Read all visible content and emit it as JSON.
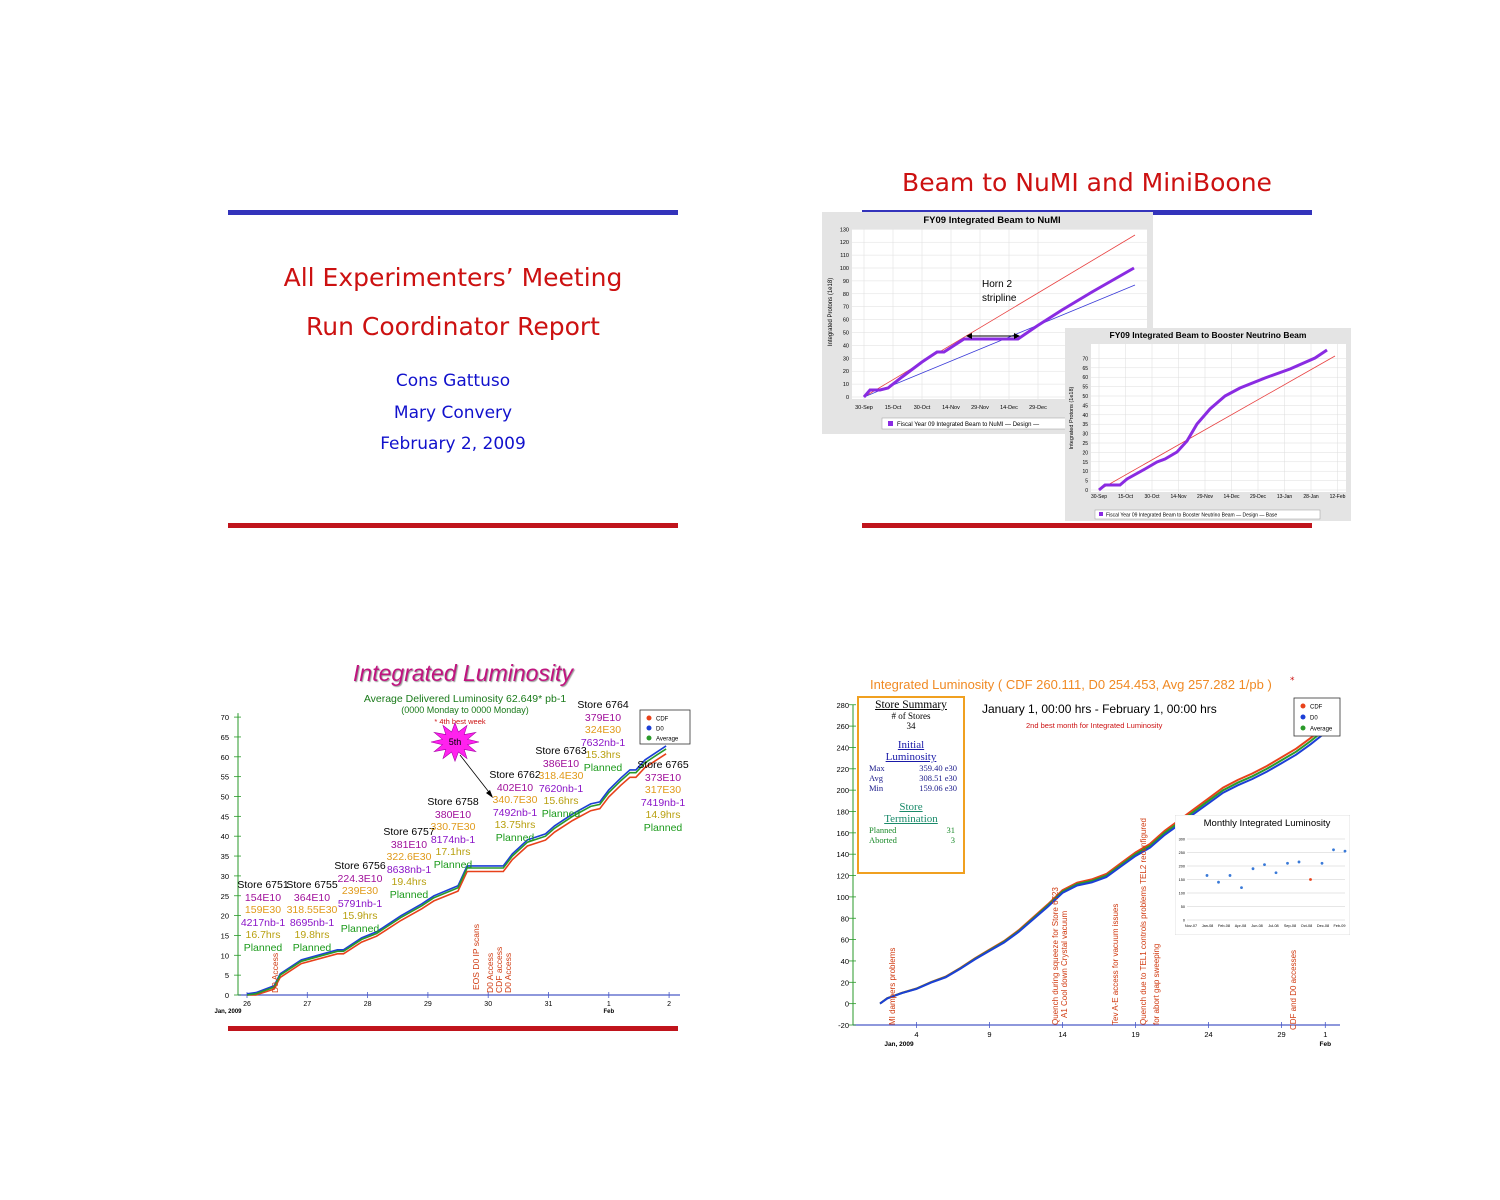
{
  "slide1": {
    "title_line1": "All Experimenters’ Meeting",
    "title_line2": "Run Coordinator Report",
    "author1": "Cons Gattuso",
    "author2": "Mary Convery",
    "date": "February 2, 2009"
  },
  "slide2": {
    "title": "Beam to NuMI and MiniBoone",
    "numi_chart": {
      "title": "FY09 Integrated Beam to NuMI",
      "ylabel": "Integrated Protons (1e18)",
      "annotation_line1": "Horn 2",
      "annotation_line2": "stripline",
      "legend": "Fiscal Year 09 Integrated Beam to NuMI — Design —",
      "yticks": [
        "0",
        "10",
        "20",
        "30",
        "40",
        "50",
        "60",
        "70",
        "80",
        "90",
        "100",
        "110",
        "120",
        "130"
      ],
      "xticks": [
        "30-Sep",
        "15-Oct",
        "30-Oct",
        "14-Nov",
        "29-Nov",
        "14-Dec",
        "29-Dec"
      ]
    },
    "bnb_chart": {
      "title": "FY09 Integrated Beam to Booster Neutrino Beam",
      "ylabel": "Integrated Protons (1e18)",
      "legend": "Fiscal Year 09 Integrated Beam to Booster Neutrino Beam — Design — Base",
      "yticks": [
        "0",
        "5",
        "10",
        "15",
        "20",
        "25",
        "30",
        "35",
        "40",
        "45",
        "50",
        "55",
        "60",
        "65",
        "70"
      ],
      "xticks": [
        "30-Sep",
        "15-Oct",
        "30-Oct",
        "14-Nov",
        "29-Nov",
        "14-Dec",
        "29-Dec",
        "13-Jan",
        "28-Jan",
        "12-Feb"
      ]
    }
  },
  "slide3": {
    "title": "Integrated Luminosity",
    "subtitle_line1": "Average Delivered Luminosity 62.649* pb-1",
    "subtitle_line2": "(0000 Monday to 0000 Monday)",
    "best_week": "* 4th best week",
    "star_label": "5th",
    "legend": [
      "CDF",
      "D0",
      "Average"
    ],
    "yticks": [
      "0",
      "5",
      "10",
      "15",
      "20",
      "25",
      "30",
      "35",
      "40",
      "45",
      "50",
      "55",
      "60",
      "65",
      "70"
    ],
    "xticks": [
      "26",
      "27",
      "28",
      "29",
      "30",
      "31",
      "1",
      "2"
    ],
    "xsub_left": "Jan, 2009",
    "xsub_right": "Feb",
    "stores": [
      {
        "name": "Store 6751",
        "l1": "154E10",
        "l2": "159E30",
        "l3": "4217nb-1",
        "l4": "16.7hrs",
        "l5": "Planned"
      },
      {
        "name": "Store 6755",
        "l1": "364E10",
        "l2": "318.55E30",
        "l3": "8695nb-1",
        "l4": "19.8hrs",
        "l5": "Planned"
      },
      {
        "name": "Store 6756",
        "l1": "224.3E10",
        "l2": "239E30",
        "l3": "5791nb-1",
        "l4": "15.9hrs",
        "l5": "Planned"
      },
      {
        "name": "Store 6757",
        "l1": "381E10",
        "l2": "322.6E30",
        "l3": "8638nb-1",
        "l4": "19.4hrs",
        "l5": "Planned"
      },
      {
        "name": "Store 6758",
        "l1": "380E10",
        "l2": "330.7E30",
        "l3": "8174nb-1",
        "l4": "17.1hrs",
        "l5": "Planned"
      },
      {
        "name": "Store 6762",
        "l1": "402E10",
        "l2": "340.7E30",
        "l3": "7492nb-1",
        "l4": "13.75hrs",
        "l5": "Planned"
      },
      {
        "name": "Store 6763",
        "l1": "386E10",
        "l2": "318.4E30",
        "l3": "7620nb-1",
        "l4": "15.6hrs",
        "l5": "Planned"
      },
      {
        "name": "Store 6764",
        "l1": "379E10",
        "l2": "324E30",
        "l3": "7632nb-1",
        "l4": "15.3hrs",
        "l5": "Planned"
      },
      {
        "name": "Store 6765",
        "l1": "373E10",
        "l2": "317E30",
        "l3": "7419nb-1",
        "l4": "14.9hrs",
        "l5": "Planned"
      }
    ],
    "events": [
      "D0 Access",
      "EOS D0 IP scans",
      "D0 Access",
      "CDF access",
      "D0 Access"
    ],
    "colors": {
      "cdf": "#e8411a",
      "d0": "#1c3fd6",
      "avg": "#2a9a2a"
    }
  },
  "slide4": {
    "title": "Integrated Luminosity ( CDF 260.111, D0 254.453, Avg 257.282 1/pb )",
    "date_range": "January 1, 00:00 hrs  - February 1, 00:00 hrs",
    "best_month": "2nd best month for Integrated  Luminosity",
    "store_summary": {
      "title": "Store Summary",
      "num_label": "# of Stores",
      "num_value": "34",
      "initial_title_1": "Initial",
      "initial_title_2": "Luminosity",
      "rows": [
        {
          "label": "Max",
          "value": "359.40 e30"
        },
        {
          "label": "Avg",
          "value": "308.51 e30"
        },
        {
          "label": "Min",
          "value": "159.06 e30"
        }
      ],
      "term_title_1": "Store",
      "term_title_2": "Termination",
      "term_rows": [
        {
          "label": "Planned",
          "value": "31"
        },
        {
          "label": "Aborted",
          "value": "3"
        }
      ]
    },
    "legend": [
      "CDF",
      "D0",
      "Average"
    ],
    "yticks": [
      "-20",
      "0",
      "20",
      "40",
      "60",
      "80",
      "100",
      "120",
      "140",
      "160",
      "180",
      "200",
      "220",
      "240",
      "260",
      "280"
    ],
    "xticks": [
      "4",
      "9",
      "14",
      "19",
      "24",
      "29",
      "1"
    ],
    "xsub_left": "Jan, 2009",
    "xsub_right": "Feb",
    "events": [
      "MI dampers problems",
      "Quench during squeeze for Store 6723",
      "A1 Cool down Crystal vacuum",
      "Tev A-E access for vacuum issues",
      "Quench due to TEL1 controls problems TEL2 reconfigured",
      "for abort gap sweeping",
      "CDF and D0 accesses"
    ],
    "monthly_chart": {
      "title": "Monthly Integrated Luminosity",
      "xticks": [
        "Nov-07",
        "Jan-08",
        "Feb-08",
        "Apr-08",
        "Jun-08",
        "Jul-08",
        "Sep-08",
        "Oct-08",
        "Dec-08",
        "Feb-09"
      ],
      "yticks": [
        "0",
        "50",
        "100",
        "150",
        "200",
        "250",
        "300"
      ],
      "values": [
        165,
        140,
        165,
        120,
        190,
        205,
        175,
        210,
        215,
        150,
        210,
        260,
        255
      ]
    }
  }
}
